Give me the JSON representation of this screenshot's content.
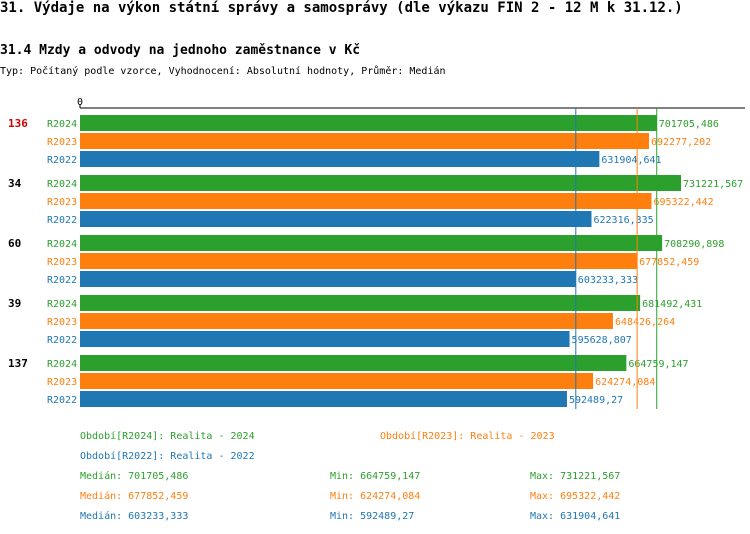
{
  "header": {
    "title": "31. Výdaje na výkon státní správy a samosprávy (dle výkazu FIN 2 - 12 M k 31.12.)",
    "subtitle": "31.4 Mzdy a odvody na jednoho zaměstnance v Kč",
    "meta": "Typ: Počítaný podle vzorce, Vyhodnocení: Absolutní hodnoty, Průměr: Medián"
  },
  "colors": {
    "R2024": "#2ca02c",
    "R2023": "#ff7f0e",
    "R2022": "#1f77b4",
    "highlight": "#cc0000"
  },
  "chart_data": {
    "type": "bar",
    "orientation": "horizontal",
    "axis_zero_label": "0",
    "xlim": [
      0,
      731221.567
    ],
    "highlight_group": "136",
    "groups": [
      {
        "label": "136",
        "series": [
          {
            "name": "R2024",
            "value": 701705.486,
            "value_label": "701705,486"
          },
          {
            "name": "R2023",
            "value": 692277.202,
            "value_label": "692277,202"
          },
          {
            "name": "R2022",
            "value": 631904.641,
            "value_label": "631904,641"
          }
        ]
      },
      {
        "label": "34",
        "series": [
          {
            "name": "R2024",
            "value": 731221.567,
            "value_label": "731221,567"
          },
          {
            "name": "R2023",
            "value": 695322.442,
            "value_label": "695322,442"
          },
          {
            "name": "R2022",
            "value": 622316.335,
            "value_label": "622316,335"
          }
        ]
      },
      {
        "label": "60",
        "series": [
          {
            "name": "R2024",
            "value": 708290.898,
            "value_label": "708290,898"
          },
          {
            "name": "R2023",
            "value": 677852.459,
            "value_label": "677852,459"
          },
          {
            "name": "R2022",
            "value": 603233.333,
            "value_label": "603233,333"
          }
        ]
      },
      {
        "label": "39",
        "series": [
          {
            "name": "R2024",
            "value": 681492.431,
            "value_label": "681492,431"
          },
          {
            "name": "R2023",
            "value": 648426.264,
            "value_label": "648426,264"
          },
          {
            "name": "R2022",
            "value": 595628.807,
            "value_label": "595628,807"
          }
        ]
      },
      {
        "label": "137",
        "series": [
          {
            "name": "R2024",
            "value": 664759.147,
            "value_label": "664759,147"
          },
          {
            "name": "R2023",
            "value": 624274.084,
            "value_label": "624274,084"
          },
          {
            "name": "R2022",
            "value": 592489.27,
            "value_label": "592489,27"
          }
        ]
      }
    ],
    "median_lines": {
      "R2024": 701705.486,
      "R2023": 677852.459,
      "R2022": 603233.333
    }
  },
  "legend": {
    "R2024": "Období[R2024]: Realita - 2024",
    "R2023": "Období[R2023]: Realita - 2023",
    "R2022": "Období[R2022]: Realita - 2022"
  },
  "stats": [
    {
      "series": "R2024",
      "median": "Medián: 701705,486",
      "min": "Min: 664759,147",
      "max": "Max: 731221,567"
    },
    {
      "series": "R2023",
      "median": "Medián: 677852,459",
      "min": "Min: 624274,084",
      "max": "Max: 695322,442"
    },
    {
      "series": "R2022",
      "median": "Medián: 603233,333",
      "min": "Min: 592489,27",
      "max": "Max: 631904,641"
    }
  ]
}
